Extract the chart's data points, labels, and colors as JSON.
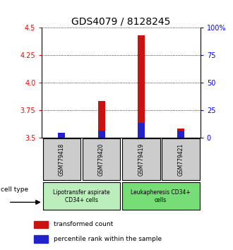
{
  "title": "GDS4079 / 8128245",
  "samples": [
    "GSM779418",
    "GSM779420",
    "GSM779419",
    "GSM779421"
  ],
  "red_values": [
    3.52,
    3.83,
    4.43,
    3.58
  ],
  "blue_values": [
    3.54,
    3.565,
    3.635,
    3.565
  ],
  "red_base": 3.5,
  "ylim": [
    3.5,
    4.5
  ],
  "yticks_left": [
    3.5,
    3.75,
    4.0,
    4.25,
    4.5
  ],
  "yticks_right": [
    0,
    25,
    50,
    75,
    100
  ],
  "ytick_labels_right": [
    "0",
    "25",
    "50",
    "75",
    "100%"
  ],
  "groups": [
    {
      "label": "Lipotransfer aspirate\nCD34+ cells",
      "samples": [
        0,
        1
      ]
    },
    {
      "label": "Leukapheresis CD34+\ncells",
      "samples": [
        2,
        3
      ]
    }
  ],
  "group_box_color_1": "#bbeebb",
  "group_box_color_2": "#77dd77",
  "sample_box_color": "#cccccc",
  "bar_width": 0.18,
  "red_color": "#cc1111",
  "blue_color": "#2222cc",
  "legend_red": "transformed count",
  "legend_blue": "percentile rank within the sample",
  "cell_type_label": "cell type",
  "title_fontsize": 10
}
